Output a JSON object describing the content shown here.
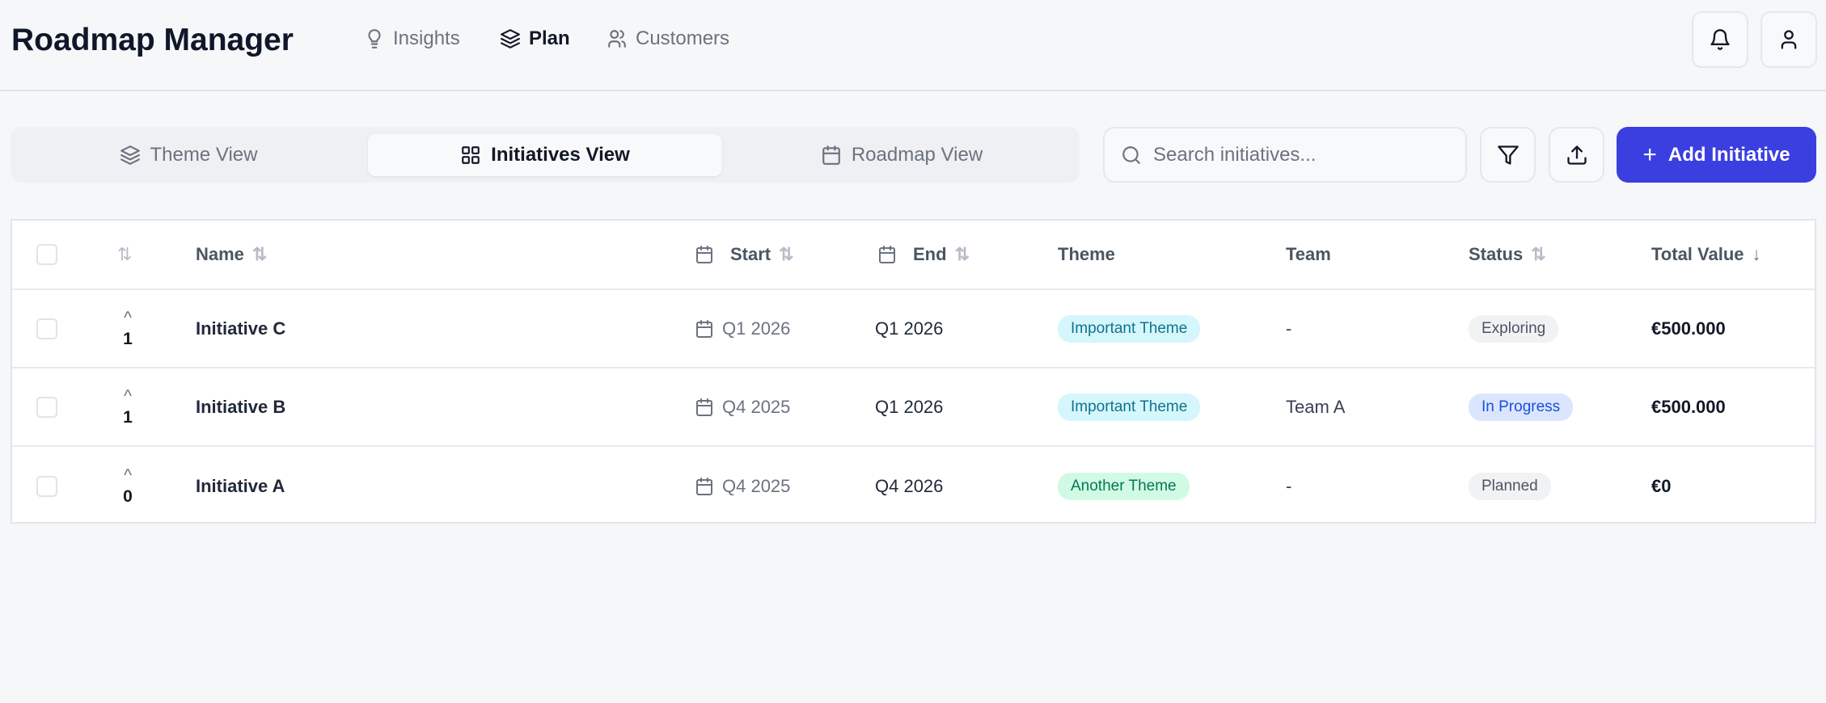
{
  "header": {
    "title": "Roadmap Manager",
    "nav": [
      {
        "label": "Insights",
        "icon": "lightbulb-icon"
      },
      {
        "label": "Plan",
        "icon": "layers-icon",
        "active": true
      },
      {
        "label": "Customers",
        "icon": "users-icon"
      }
    ]
  },
  "views": {
    "tabs": [
      {
        "label": "Theme View",
        "icon": "layers-icon"
      },
      {
        "label": "Initiatives View",
        "icon": "grid-icon",
        "active": true
      },
      {
        "label": "Roadmap View",
        "icon": "calendar-icon"
      }
    ]
  },
  "toolbar": {
    "search_placeholder": "Search initiatives...",
    "search_value": "",
    "add_label": "Add Initiative",
    "accent": "#3b3fe0"
  },
  "table": {
    "headers": {
      "name": "Name",
      "start": "Start",
      "end": "End",
      "theme": "Theme",
      "team": "Team",
      "status": "Status",
      "total": "Total Value"
    },
    "rows": [
      {
        "votes": "1",
        "name": "Initiative C",
        "start": "Q1 2026",
        "end": "Q1 2026",
        "theme": "Important Theme",
        "team": "-",
        "status": "Exploring",
        "total": "€500.000"
      },
      {
        "votes": "1",
        "name": "Initiative B",
        "start": "Q4 2025",
        "end": "Q1 2026",
        "theme": "Important Theme",
        "team": "Team A",
        "status": "In Progress",
        "total": "€500.000"
      },
      {
        "votes": "0",
        "name": "Initiative A",
        "start": "Q4 2025",
        "end": "Q4 2026",
        "theme": "Another Theme",
        "team": "-",
        "status": "Planned",
        "total": "€0"
      }
    ]
  },
  "colors": {
    "theme_important_bg": "#d5f6fb",
    "theme_important_fg": "#0e7490",
    "theme_another_bg": "#d1fae5",
    "theme_another_fg": "#047857",
    "status_inprogress_bg": "#dbe6fe",
    "status_inprogress_fg": "#1d4ed8",
    "status_default_bg": "#f1f2f4",
    "status_default_fg": "#4b5563"
  }
}
